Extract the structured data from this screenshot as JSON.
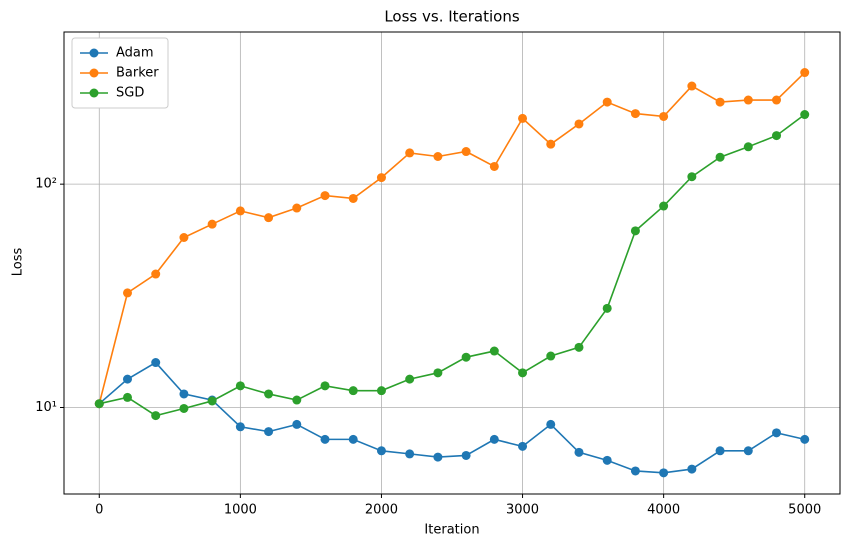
{
  "chart_data": {
    "type": "line",
    "title": "Loss vs. Iterations",
    "xlabel": "Iteration",
    "ylabel": "Loss",
    "x": [
      0,
      200,
      400,
      600,
      800,
      1000,
      1200,
      1400,
      1600,
      1800,
      2000,
      2200,
      2400,
      2600,
      2800,
      3000,
      3200,
      3400,
      3600,
      3800,
      4000,
      4200,
      4400,
      4600,
      4800,
      5000
    ],
    "series": [
      {
        "name": "Adam",
        "color": "#1f77b4",
        "values": [
          10.4,
          13.4,
          15.9,
          11.5,
          10.8,
          8.2,
          7.8,
          8.4,
          7.2,
          7.2,
          6.4,
          6.2,
          6.0,
          6.1,
          7.2,
          6.7,
          8.4,
          6.3,
          5.8,
          5.2,
          5.1,
          5.3,
          6.4,
          6.4,
          7.7,
          7.2
        ]
      },
      {
        "name": "Barker",
        "color": "#ff7f0e",
        "values": [
          10.4,
          32.6,
          39.6,
          57.7,
          66.2,
          75.9,
          70.8,
          78.2,
          88.9,
          86.3,
          107,
          138,
          133,
          140,
          120,
          197,
          151,
          186,
          233,
          207,
          201,
          275,
          233,
          238,
          238,
          316
        ]
      },
      {
        "name": "SGD",
        "color": "#2ca02c",
        "values": [
          10.4,
          11.1,
          9.2,
          9.9,
          10.7,
          12.5,
          11.5,
          10.8,
          12.5,
          11.9,
          11.9,
          13.4,
          14.3,
          16.8,
          17.9,
          14.3,
          17.0,
          18.6,
          27.8,
          61.8,
          79.8,
          108,
          132,
          147,
          165,
          205
        ]
      }
    ],
    "xlim": [
      -250,
      5250
    ],
    "xticks": [
      0,
      1000,
      2000,
      3000,
      4000,
      5000
    ],
    "ylim": [
      4.1,
      480
    ],
    "yticks": [
      {
        "value": 10,
        "label": "10¹"
      },
      {
        "value": 100,
        "label": "10²"
      }
    ],
    "log_y": true,
    "grid": true,
    "legend": "upper left"
  }
}
